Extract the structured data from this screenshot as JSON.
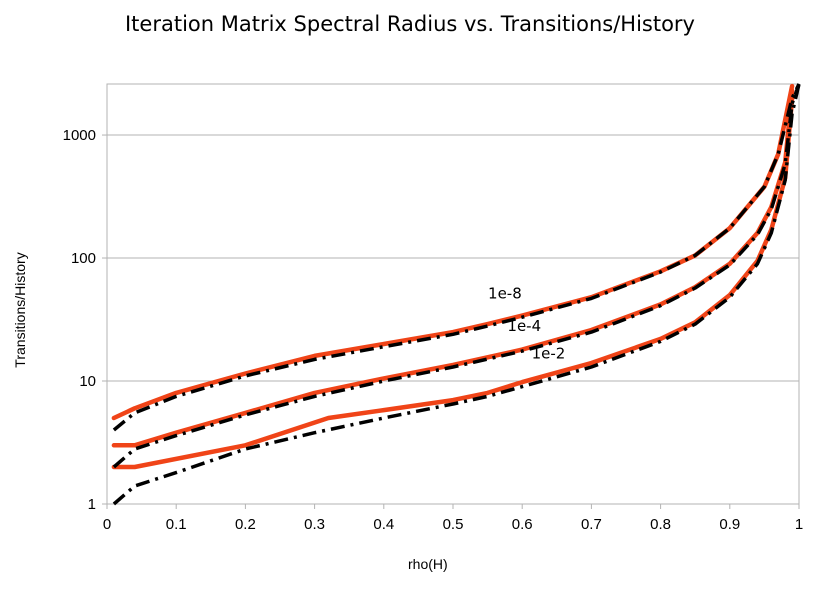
{
  "chart_data": {
    "type": "line",
    "title": "Iteration Matrix Spectral Radius vs. Transitions/History",
    "xlabel": "rho(H)",
    "ylabel": "Transitions/History",
    "xscale": "linear",
    "yscale": "log",
    "xlim": [
      0,
      1
    ],
    "ylim": [
      1,
      2600
    ],
    "grid": "horizontal major lines",
    "legend": "none",
    "x_ticks": [
      "0",
      "0.1",
      "0.2",
      "0.3",
      "0.4",
      "0.5",
      "0.6",
      "0.7",
      "0.8",
      "0.9",
      "1"
    ],
    "y_ticks": [
      "1",
      "10",
      "100",
      "1000"
    ],
    "colors": {
      "measured": "#f04418",
      "fit": "#000000",
      "grid": "#b3b3b3"
    },
    "annotations": [
      {
        "text": "1e-8",
        "x": 0.575,
        "y": 47
      },
      {
        "text": "1e-4",
        "x": 0.603,
        "y": 25.5
      },
      {
        "text": "1e-2",
        "x": 0.638,
        "y": 15.2
      }
    ],
    "series": [
      {
        "style": "solid-red",
        "x": [
          0.01,
          0.04,
          0.1,
          0.2,
          0.3,
          0.4,
          0.5,
          0.55,
          0.6,
          0.7,
          0.8,
          0.85,
          0.9,
          0.95,
          0.97,
          0.99
        ],
        "values": [
          5,
          6,
          8,
          11.5,
          16,
          20,
          25,
          29,
          34,
          48,
          78,
          105,
          175,
          380,
          700,
          2500
        ]
      },
      {
        "style": "dashdot-black",
        "x": [
          0.01,
          0.04,
          0.1,
          0.2,
          0.3,
          0.4,
          0.5,
          0.55,
          0.6,
          0.7,
          0.8,
          0.85,
          0.9,
          0.95,
          0.97,
          0.99,
          1.0
        ],
        "values": [
          4,
          5.5,
          7.5,
          11,
          15,
          19,
          24,
          28,
          33,
          47,
          77,
          105,
          175,
          380,
          700,
          2000,
          2600
        ]
      },
      {
        "style": "solid-red",
        "x": [
          0.01,
          0.04,
          0.1,
          0.2,
          0.3,
          0.4,
          0.5,
          0.6,
          0.7,
          0.8,
          0.85,
          0.9,
          0.94,
          0.96,
          0.98,
          0.99
        ],
        "values": [
          3,
          3,
          3.8,
          5.5,
          8,
          10.5,
          13.5,
          18,
          26,
          42,
          58,
          90,
          160,
          260,
          600,
          2300
        ]
      },
      {
        "style": "dashdot-black",
        "x": [
          0.01,
          0.04,
          0.1,
          0.2,
          0.3,
          0.4,
          0.5,
          0.6,
          0.7,
          0.8,
          0.85,
          0.9,
          0.94,
          0.96,
          0.98,
          0.99,
          1.0
        ],
        "values": [
          2,
          2.8,
          3.6,
          5.3,
          7.5,
          10,
          13,
          17.5,
          25,
          41,
          57,
          88,
          155,
          250,
          580,
          1800,
          2600
        ]
      },
      {
        "style": "solid-red",
        "x": [
          0.01,
          0.04,
          0.2,
          0.32,
          0.4,
          0.5,
          0.55,
          0.6,
          0.7,
          0.8,
          0.85,
          0.9,
          0.94,
          0.96,
          0.98,
          0.99
        ],
        "values": [
          2,
          2,
          3,
          5,
          5.8,
          7,
          8,
          9.8,
          14,
          22,
          30,
          50,
          95,
          170,
          450,
          2000
        ]
      },
      {
        "style": "dashdot-black",
        "x": [
          0.01,
          0.04,
          0.1,
          0.2,
          0.3,
          0.4,
          0.5,
          0.55,
          0.6,
          0.7,
          0.8,
          0.85,
          0.9,
          0.94,
          0.96,
          0.98,
          0.99,
          1.0
        ],
        "values": [
          1,
          1.4,
          1.8,
          2.8,
          3.8,
          5,
          6.5,
          7.5,
          9,
          13,
          21,
          29,
          48,
          90,
          160,
          430,
          1500,
          2600
        ]
      }
    ]
  }
}
